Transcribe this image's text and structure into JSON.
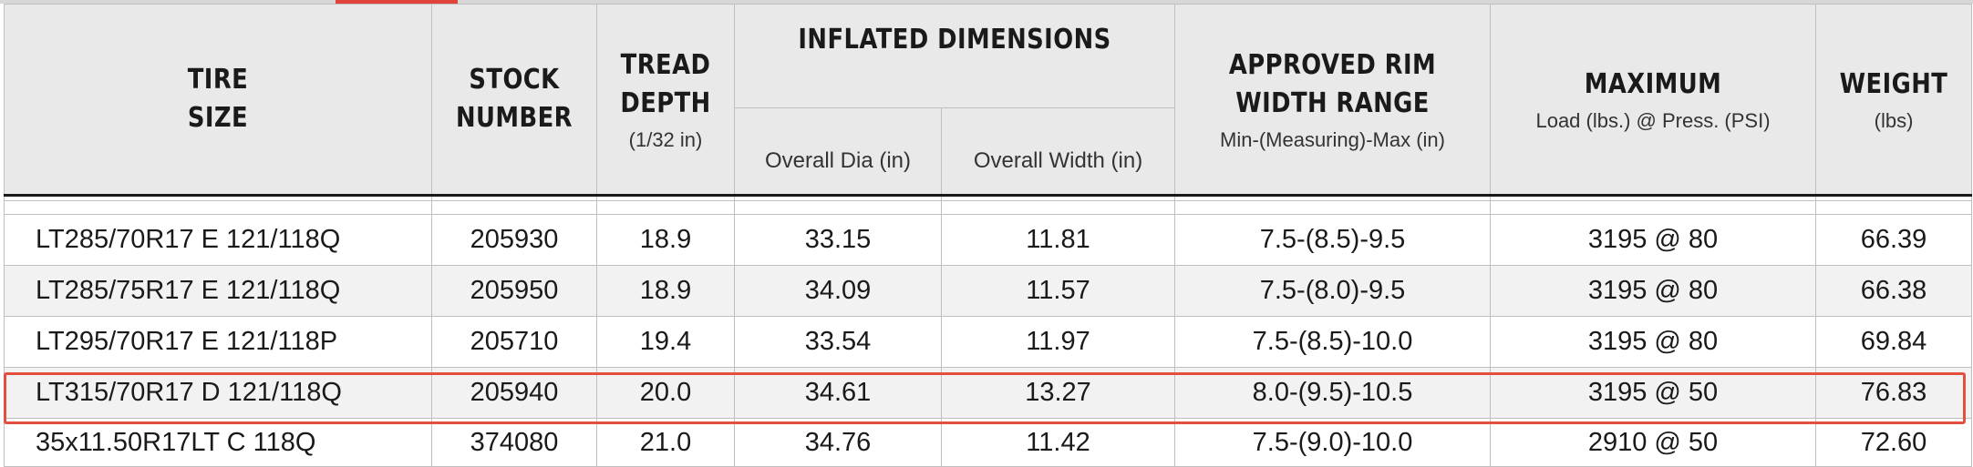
{
  "header": {
    "tire_size": [
      "TIRE",
      "SIZE"
    ],
    "stock_number": [
      "STOCK",
      "NUMBER"
    ],
    "tread_depth": [
      "TREAD",
      "DEPTH"
    ],
    "tread_depth_unit": "(1/32 in)",
    "inflated_dimensions": "INFLATED DIMENSIONS",
    "overall_dia": "Overall Dia (in)",
    "overall_width": "Overall Width (in)",
    "approved_rim": [
      "APPROVED RIM",
      "WIDTH RANGE"
    ],
    "approved_rim_sub": "Min-(Measuring)-Max (in)",
    "maximum": "MAXIMUM",
    "maximum_sub": "Load (lbs.) @ Press. (PSI)",
    "weight": "WEIGHT",
    "weight_unit": "(lbs)"
  },
  "rows": [
    {
      "size": "LT285/70R17 E 121/118Q",
      "stock": "205930",
      "tread": "18.9",
      "dia": "33.15",
      "width": "11.81",
      "rim": "7.5-(8.5)-9.5",
      "max": "3195 @ 80",
      "weight": "66.39"
    },
    {
      "size": "LT285/75R17 E 121/118Q",
      "stock": "205950",
      "tread": "18.9",
      "dia": "34.09",
      "width": "11.57",
      "rim": "7.5-(8.0)-9.5",
      "max": "3195 @ 80",
      "weight": "66.38"
    },
    {
      "size": "LT295/70R17 E 121/118P",
      "stock": "205710",
      "tread": "19.4",
      "dia": "33.54",
      "width": "11.97",
      "rim": "7.5-(8.5)-10.0",
      "max": "3195 @ 80",
      "weight": "69.84"
    },
    {
      "size": "LT315/70R17 D 121/118Q",
      "stock": "205940",
      "tread": "20.0",
      "dia": "34.61",
      "width": "13.27",
      "rim": "8.0-(9.5)-10.5",
      "max": "3195 @ 50",
      "weight": "76.83"
    },
    {
      "size": "35x11.50R17LT C 118Q",
      "stock": "374080",
      "tread": "21.0",
      "dia": "34.76",
      "width": "11.42",
      "rim": "7.5-(9.0)-10.0",
      "max": "2910 @ 50",
      "weight": "72.60"
    }
  ],
  "colors": {
    "header_bg": "#e9e9e9",
    "alt_row_bg": "#f2f2f2",
    "highlight": "#e3503f",
    "accent": "#e0433a"
  }
}
